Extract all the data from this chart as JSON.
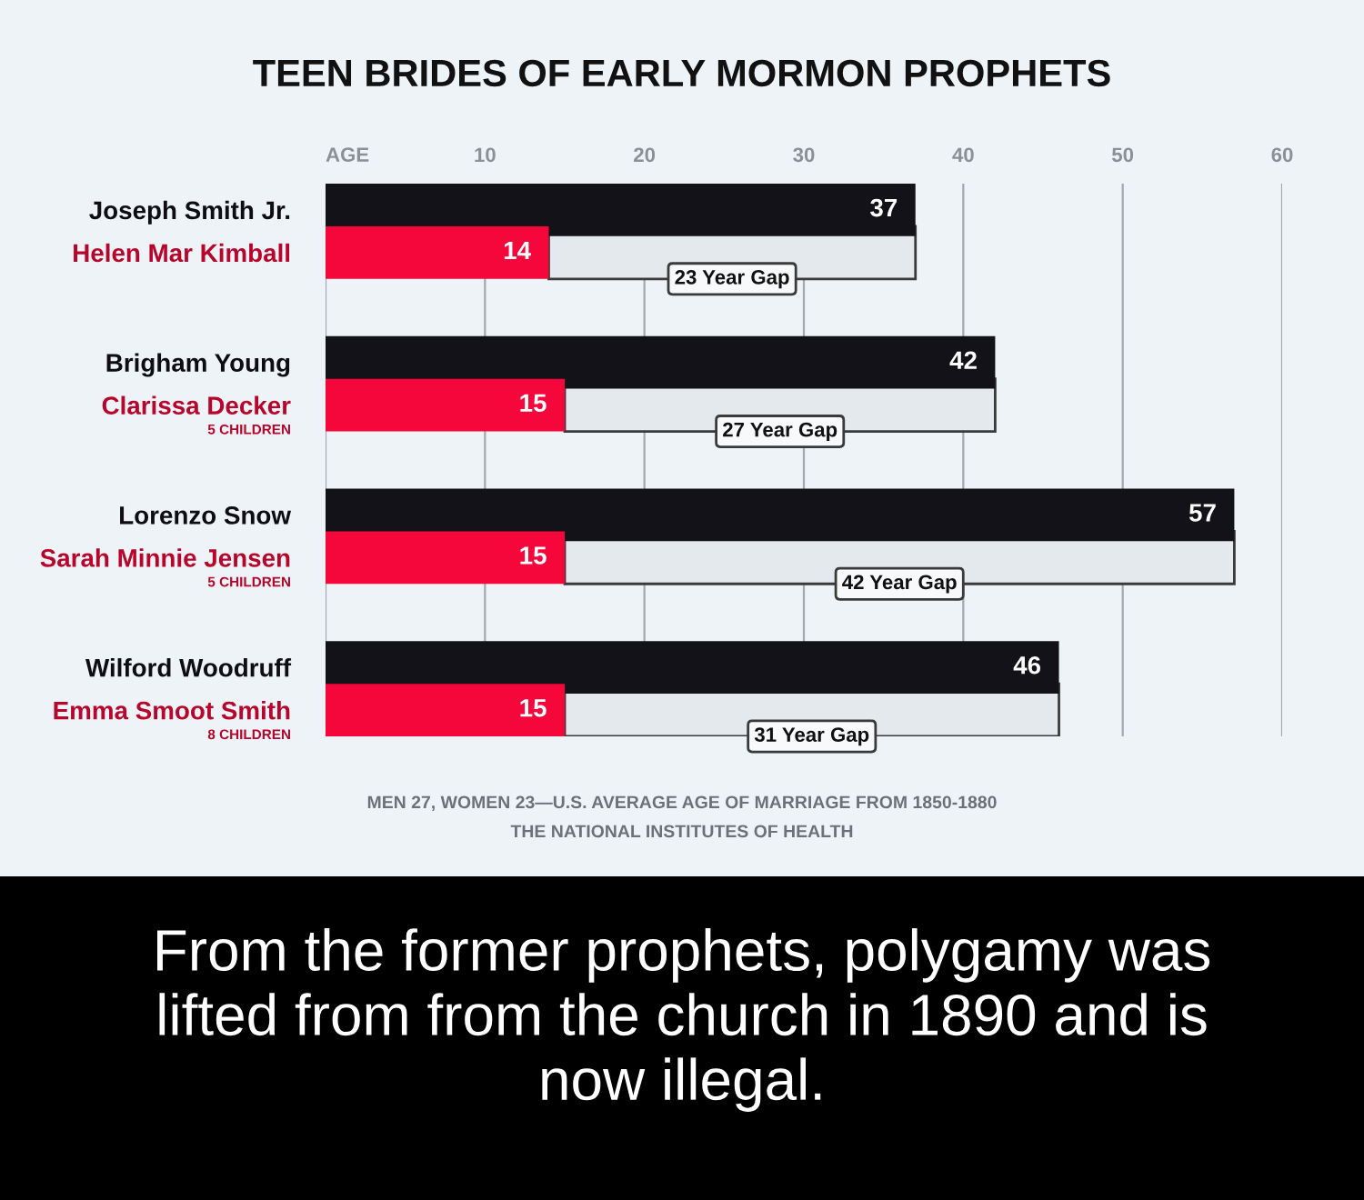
{
  "chart_data": {
    "type": "bar",
    "orientation": "horizontal",
    "title": "TEEN BRIDES OF EARLY MORMON PROPHETS",
    "xlabel": "AGE",
    "categories": [
      "Joseph Smith Jr.",
      "Helen Mar Kimball",
      "Brigham Young",
      "Clarissa Decker\n5 CHILDREN",
      "Lorenzo Snow",
      "Sarah Minnie Jensen\n5 CHILDREN",
      "Wilford Woodruff",
      "Emma Smoot Smith\n8 CHILDREN"
    ],
    "series": [
      {
        "color": "#e3e9ed",
        "base": [
          null,
          14,
          null,
          15,
          null,
          15,
          null,
          15
        ],
        "values": [
          null,
          23,
          null,
          27,
          null,
          42,
          null,
          31
        ],
        "value_labels": [
          null,
          "23 Year Gap",
          null,
          "27 Year Gap",
          null,
          "42 Year Gap",
          null,
          "31 Year Gap"
        ]
      },
      {
        "color": "#121218",
        "values": [
          37,
          null,
          42,
          null,
          57,
          null,
          46,
          null
        ],
        "value_labels": [
          "37",
          null,
          "42",
          null,
          "57",
          null,
          "46",
          null
        ]
      },
      {
        "color": "#f5073b",
        "values": [
          null,
          14,
          null,
          15,
          null,
          15,
          null,
          15
        ],
        "value_labels": [
          null,
          "14",
          null,
          "15",
          null,
          "15",
          null,
          "15"
        ]
      }
    ],
    "xlim": [
      0,
      60
    ],
    "xticks": [
      {
        "value": 0,
        "label": null
      },
      10,
      20,
      30,
      40,
      50,
      60
    ],
    "grid": "x",
    "annotations": [
      "MEN 27, WOMEN 23—U.S. AVERAGE AGE OF MARRIAGE FROM 1850-1880",
      "THE NATIONAL INSTITUTES OF HEALTH",
      "From the former prophets, polygamy was lifted from from the church in 1890 and is now illegal."
    ]
  }
}
